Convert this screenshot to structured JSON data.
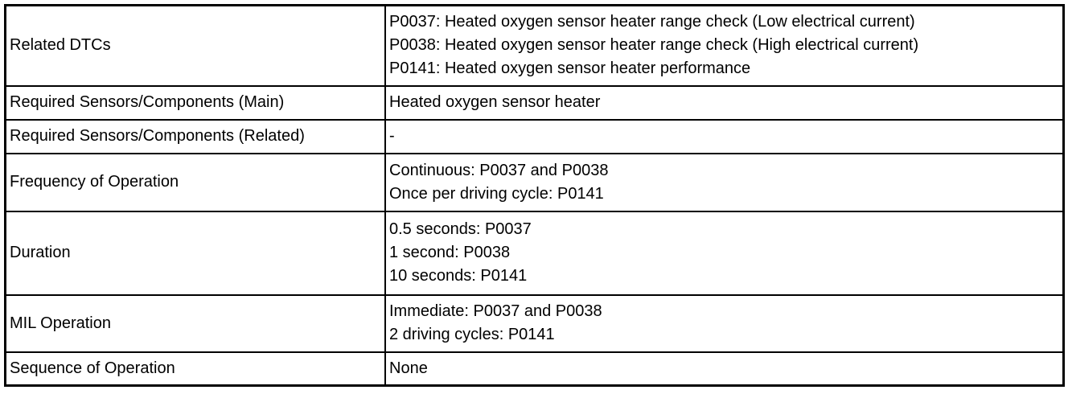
{
  "rows": [
    {
      "label": "Related DTCs",
      "values": [
        "P0037: Heated oxygen sensor heater range check (Low electrical current)",
        "P0038: Heated oxygen sensor heater range check (High electrical current)",
        "P0141: Heated oxygen sensor heater performance"
      ]
    },
    {
      "label": "Required Sensors/Components (Main)",
      "values": [
        "Heated oxygen sensor heater"
      ]
    },
    {
      "label": "Required Sensors/Components (Related)",
      "values": [
        "-"
      ]
    },
    {
      "label": "Frequency of Operation",
      "values": [
        "Continuous: P0037 and P0038",
        "Once per driving cycle: P0141"
      ]
    },
    {
      "label": "Duration",
      "values": [
        "0.5 seconds: P0037",
        "1 second: P0038",
        "10 seconds: P0141"
      ]
    },
    {
      "label": "MIL Operation",
      "values": [
        "Immediate: P0037 and P0038",
        "2 driving cycles: P0141"
      ]
    },
    {
      "label": "Sequence of Operation",
      "values": [
        "None"
      ]
    }
  ]
}
